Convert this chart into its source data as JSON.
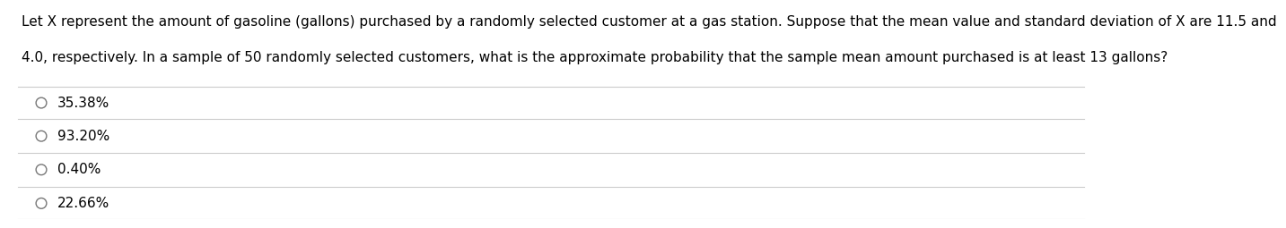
{
  "question_line1": "Let X represent the amount of gasoline (gallons) purchased by a randomly selected customer at a gas station. Suppose that the mean value and standard deviation of X are 11.5 and",
  "question_line2": "4.0, respectively. In a sample of 50 randomly selected customers, what is the approximate probability that the sample mean amount purchased is at least 13 gallons?",
  "options": [
    "35.38%",
    "93.20%",
    "0.40%",
    "22.66%"
  ],
  "background_color": "#ffffff",
  "text_color": "#000000",
  "option_text_color": "#000000",
  "divider_color": "#cccccc",
  "font_size_question": 11.0,
  "font_size_options": 11.0,
  "circle_color": "#777777"
}
